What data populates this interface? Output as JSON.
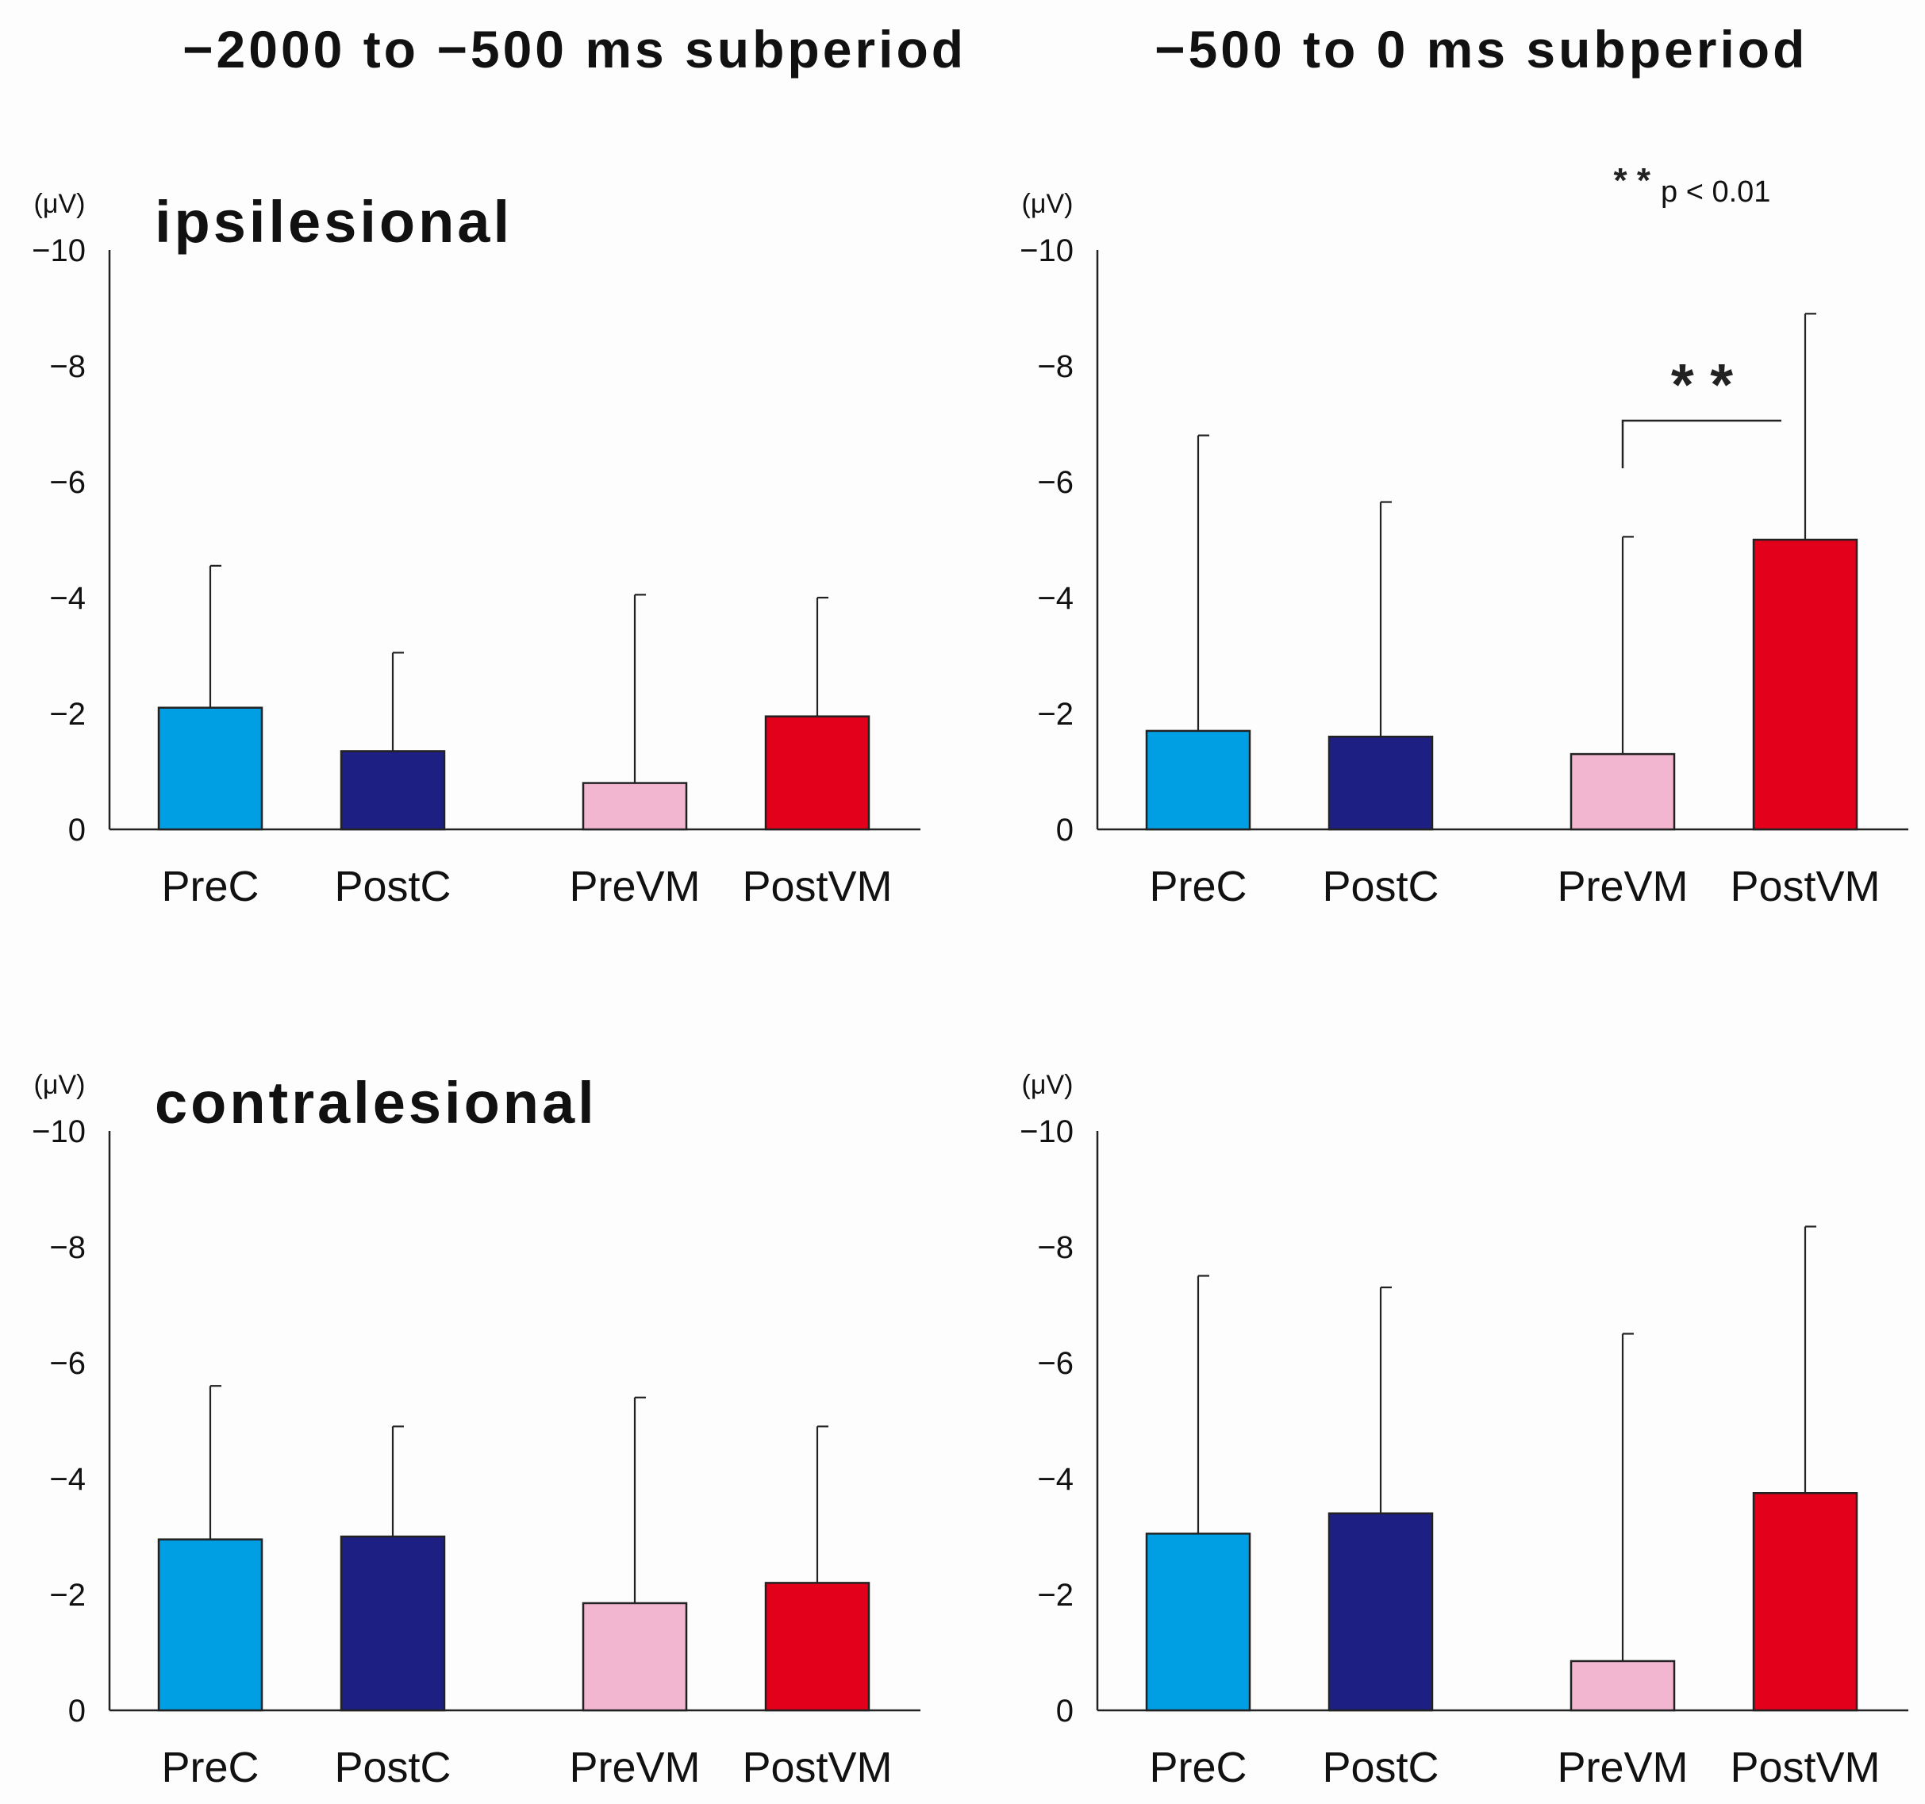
{
  "column_titles": [
    "−2000 to −500 ms subperiod",
    "−500 to 0 ms subperiod"
  ],
  "colors": {
    "PreC": "#009fe3",
    "PostC": "#1d1f82",
    "PreVM": "#f3b6d0",
    "PostVM": "#e3001b"
  },
  "significance_note": {
    "stars": "* *",
    "text": "p < 0.01"
  },
  "chart_data": [
    {
      "type": "bar",
      "group_label": "ipsilesional",
      "subperiod": "−2000 to −500 ms subperiod",
      "unit": "(μV)",
      "categories": [
        "PreC",
        "PostC",
        "PreVM",
        "PostVM"
      ],
      "values": [
        -2.1,
        -1.35,
        -0.8,
        -1.95
      ],
      "error_upper": [
        -4.55,
        -3.05,
        -4.05,
        -4.0
      ],
      "ylim": [
        0,
        -10
      ],
      "yticks": [
        "0",
        "−2",
        "−4",
        "−6",
        "−8",
        "−10"
      ],
      "significance": null
    },
    {
      "type": "bar",
      "group_label": "",
      "subperiod": "−500 to 0 ms subperiod",
      "unit": "(μV)",
      "categories": [
        "PreC",
        "PostC",
        "PreVM",
        "PostVM"
      ],
      "values": [
        -1.7,
        -1.6,
        -1.3,
        -5.0
      ],
      "error_upper": [
        -6.8,
        -5.65,
        -5.05,
        -8.9
      ],
      "ylim": [
        0,
        -10
      ],
      "yticks": [
        "0",
        "−2",
        "−4",
        "−6",
        "−8",
        "−10"
      ],
      "significance": {
        "between": [
          "PreVM",
          "PostVM"
        ],
        "label": "* *"
      }
    },
    {
      "type": "bar",
      "group_label": "contralesional",
      "subperiod": "−2000 to −500 ms subperiod",
      "unit": "(μV)",
      "categories": [
        "PreC",
        "PostC",
        "PreVM",
        "PostVM"
      ],
      "values": [
        -2.95,
        -3.0,
        -1.85,
        -2.2
      ],
      "error_upper": [
        -5.6,
        -4.9,
        -5.4,
        -4.9
      ],
      "ylim": [
        0,
        -10
      ],
      "yticks": [
        "0",
        "−2",
        "−4",
        "−6",
        "−8",
        "−10"
      ],
      "significance": null
    },
    {
      "type": "bar",
      "group_label": "",
      "subperiod": "−500 to 0 ms subperiod",
      "unit": "(μV)",
      "categories": [
        "PreC",
        "PostC",
        "PreVM",
        "PostVM"
      ],
      "values": [
        -3.05,
        -3.4,
        -0.85,
        -3.75
      ],
      "error_upper": [
        -7.5,
        -7.3,
        -6.5,
        -8.35
      ],
      "ylim": [
        0,
        -10
      ],
      "yticks": [
        "0",
        "−2",
        "−4",
        "−6",
        "−8",
        "−10"
      ],
      "significance": null
    }
  ]
}
